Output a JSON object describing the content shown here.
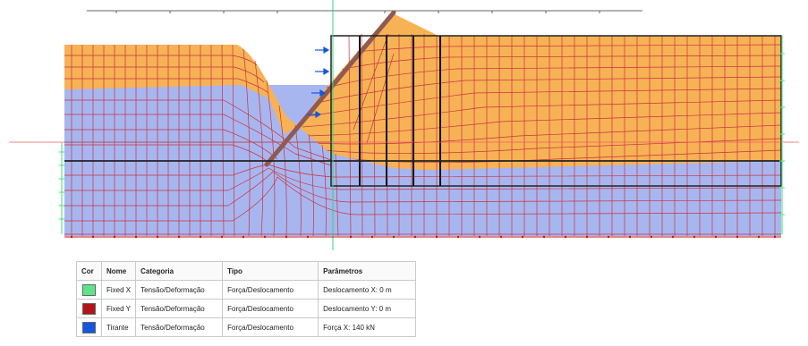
{
  "legend": {
    "headers": [
      "Cor",
      "Nome",
      "Categoria",
      "Tipo",
      "Parâmetros"
    ],
    "rows": [
      {
        "color": "#5de38a",
        "name": "Fixed X",
        "category": "Tensão/Deformação",
        "type": "Força/Deslocamento",
        "params": "Deslocamento X: 0 m"
      },
      {
        "color": "#b3141a",
        "name": "Fixed Y",
        "category": "Tensão/Deformação",
        "type": "Força/Deslocamento",
        "params": "Deslocamento Y: 0 m"
      },
      {
        "color": "#1456e0",
        "name": "Tirante",
        "category": "Tensão/Deformação",
        "type": "Força/Deslocamento",
        "params": "Força X: 140 kN"
      }
    ]
  },
  "materials": {
    "upper_soil_color": "#f7b256",
    "lower_soil_color": "#a8b6f0",
    "mesh_line_color": "#c8323c",
    "wall_color": "#8f5a52"
  }
}
